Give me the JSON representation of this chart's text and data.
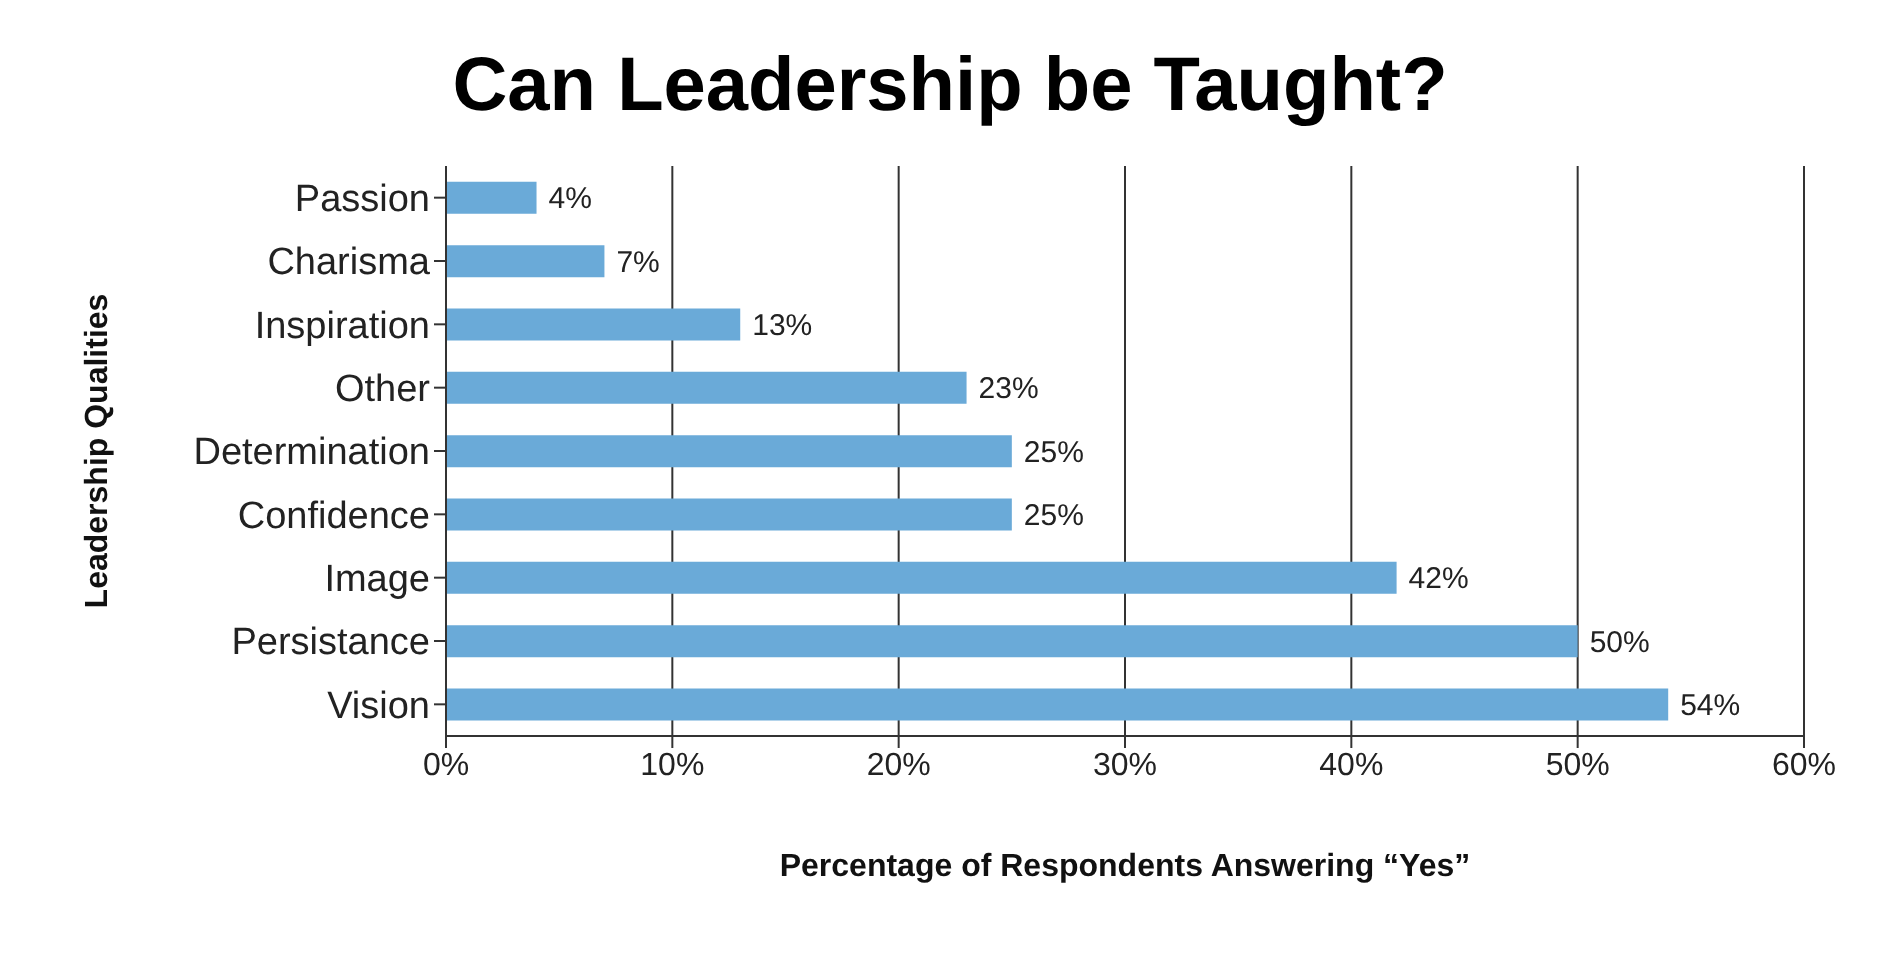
{
  "chart_data": {
    "type": "bar",
    "orientation": "horizontal",
    "title": "Can Leadership be Taught?",
    "xlabel": "Percentage of Respondents Answering “Yes”",
    "ylabel": "Leadership Qualities",
    "categories": [
      "Passion",
      "Charisma",
      "Inspiration",
      "Other",
      "Determination",
      "Confidence",
      "Image",
      "Persistance",
      "Vision"
    ],
    "values": [
      4,
      7,
      13,
      23,
      25,
      25,
      42,
      50,
      54
    ],
    "value_labels": [
      "4%",
      "7%",
      "13%",
      "23%",
      "25%",
      "25%",
      "42%",
      "50%",
      "54%"
    ],
    "color": "#6aaad8",
    "xlim": [
      0,
      60
    ],
    "xticks": [
      {
        "value": 0,
        "label": "0%"
      },
      {
        "value": 10,
        "label": "10%"
      },
      {
        "value": 20,
        "label": "20%"
      },
      {
        "value": 30,
        "label": "30%"
      },
      {
        "value": 40,
        "label": "40%"
      },
      {
        "value": 50,
        "label": "50%"
      },
      {
        "value": 60,
        "label": "60%"
      }
    ],
    "grid": "x"
  }
}
